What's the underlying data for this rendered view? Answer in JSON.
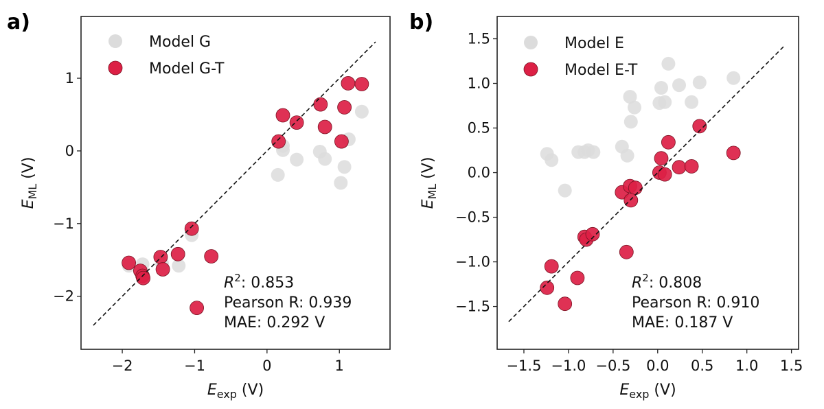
{
  "chart_data": [
    {
      "panel_label": "a)",
      "type": "scatter",
      "xlabel": {
        "main": "E",
        "sub": "exp",
        "unit": " (V)"
      },
      "ylabel": {
        "main": "E",
        "sub": "ML",
        "unit": " (V)"
      },
      "xlim": [
        -2.57,
        1.7
      ],
      "ylim": [
        -2.73,
        1.85
      ],
      "xticks": [
        -2,
        -1,
        0,
        1
      ],
      "xtick_labels": [
        "−2",
        "−1",
        "0",
        "1"
      ],
      "yticks": [
        -2,
        -1,
        0,
        1
      ],
      "ytick_labels": [
        "−2",
        "−1",
        "0",
        "1"
      ],
      "grid": false,
      "legend_position": "top-left",
      "diagonal": {
        "style": "dashed",
        "from": -2.4,
        "to": 1.5
      },
      "stats": {
        "r2_label": "R",
        "r2_sup": "2",
        "r2_value": ": 0.853",
        "pearson": "Pearson R: 0.939",
        "mae": "MAE: 0.292 V"
      },
      "series": [
        {
          "name": "Model G",
          "color": "#dcdcdc",
          "edge": "none",
          "points": [
            [
              0.22,
              0.07
            ],
            [
              0.22,
              0.01
            ],
            [
              0.41,
              -0.12
            ],
            [
              0.73,
              -0.01
            ],
            [
              0.8,
              -0.11
            ],
            [
              0.15,
              -0.33
            ],
            [
              1.07,
              -0.22
            ],
            [
              1.02,
              -0.44
            ],
            [
              1.13,
              0.16
            ],
            [
              1.31,
              0.54
            ],
            [
              -1.91,
              -1.58
            ],
            [
              -1.72,
              -1.56
            ],
            [
              -1.45,
              -1.55
            ],
            [
              -1.22,
              -1.58
            ],
            [
              -1.04,
              -1.16
            ]
          ]
        },
        {
          "name": "Model G-T",
          "color": "#dc2045",
          "edge": "#7a1424",
          "points": [
            [
              0.16,
              0.13
            ],
            [
              0.22,
              0.49
            ],
            [
              0.41,
              0.39
            ],
            [
              0.74,
              0.64
            ],
            [
              0.8,
              0.33
            ],
            [
              1.07,
              0.6
            ],
            [
              1.03,
              0.13
            ],
            [
              1.12,
              0.93
            ],
            [
              1.31,
              0.92
            ],
            [
              -1.91,
              -1.54
            ],
            [
              -1.75,
              -1.65
            ],
            [
              -1.72,
              -1.72
            ],
            [
              -1.71,
              -1.75
            ],
            [
              -1.47,
              -1.46
            ],
            [
              -1.44,
              -1.63
            ],
            [
              -1.23,
              -1.42
            ],
            [
              -1.04,
              -1.07
            ],
            [
              -0.77,
              -1.45
            ],
            [
              -0.97,
              -2.16
            ]
          ]
        }
      ]
    },
    {
      "panel_label": "b)",
      "type": "scatter",
      "xlabel": {
        "main": "E",
        "sub": "exp",
        "unit": " (V)"
      },
      "ylabel": {
        "main": "E",
        "sub": "ML",
        "unit": " (V)"
      },
      "xlim": [
        -1.8,
        1.58
      ],
      "ylim": [
        -1.98,
        1.75
      ],
      "xticks": [
        -1.5,
        -1.0,
        -0.5,
        0.0,
        0.5,
        1.0,
        1.5
      ],
      "xtick_labels": [
        "−1.5",
        "−1.0",
        "−0.5",
        "0.0",
        "0.5",
        "1.0",
        "1.5"
      ],
      "yticks": [
        -1.5,
        -1.0,
        -0.5,
        0.0,
        0.5,
        1.0,
        1.5
      ],
      "ytick_labels": [
        "−1.5",
        "−1.0",
        "−0.5",
        "0.0",
        "0.5",
        "1.0",
        "1.5"
      ],
      "grid": false,
      "legend_position": "top-left",
      "diagonal": {
        "style": "dashed",
        "from": -1.67,
        "to": 1.42
      },
      "stats": {
        "r2_label": "R",
        "r2_sup": "2",
        "r2_value": ": 0.808",
        "pearson": "Pearson R: 0.910",
        "mae": "MAE: 0.187 V"
      },
      "series": [
        {
          "name": "Model E",
          "color": "#dcdcdc",
          "edge": "none",
          "points": [
            [
              0.12,
              1.22
            ],
            [
              0.04,
              0.95
            ],
            [
              0.24,
              0.98
            ],
            [
              0.47,
              1.01
            ],
            [
              0.85,
              1.06
            ],
            [
              -0.31,
              0.85
            ],
            [
              -0.26,
              0.73
            ],
            [
              0.02,
              0.78
            ],
            [
              0.08,
              0.79
            ],
            [
              0.38,
              0.79
            ],
            [
              -0.3,
              0.57
            ],
            [
              -1.24,
              0.21
            ],
            [
              -1.19,
              0.14
            ],
            [
              -0.89,
              0.23
            ],
            [
              -0.82,
              0.23
            ],
            [
              -0.78,
              0.25
            ],
            [
              -0.72,
              0.23
            ],
            [
              -0.4,
              0.29
            ],
            [
              -0.34,
              0.19
            ],
            [
              -1.04,
              -0.2
            ]
          ]
        },
        {
          "name": "Model E-T",
          "color": "#dc2045",
          "edge": "#7a1424",
          "points": [
            [
              0.47,
              0.52
            ],
            [
              0.12,
              0.34
            ],
            [
              0.04,
              0.16
            ],
            [
              0.02,
              0.0
            ],
            [
              0.08,
              -0.02
            ],
            [
              0.24,
              0.06
            ],
            [
              0.38,
              0.07
            ],
            [
              0.85,
              0.22
            ],
            [
              -0.4,
              -0.22
            ],
            [
              -0.31,
              -0.15
            ],
            [
              -0.25,
              -0.17
            ],
            [
              -0.3,
              -0.31
            ],
            [
              -0.82,
              -0.72
            ],
            [
              -0.8,
              -0.75
            ],
            [
              -0.73,
              -0.69
            ],
            [
              -0.35,
              -0.89
            ],
            [
              -1.19,
              -1.05
            ],
            [
              -0.9,
              -1.18
            ],
            [
              -1.24,
              -1.29
            ],
            [
              -1.04,
              -1.47
            ]
          ]
        }
      ]
    }
  ]
}
